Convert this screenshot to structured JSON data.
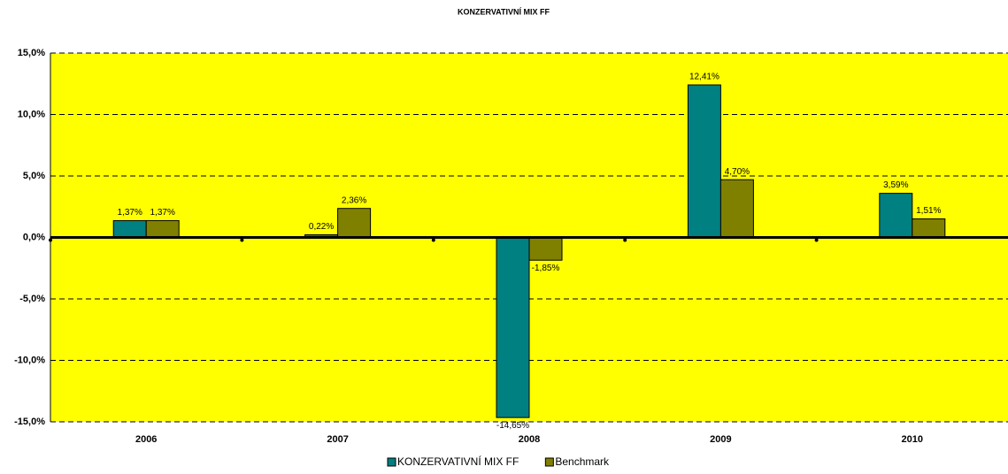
{
  "chart_data": {
    "type": "bar",
    "title": "KONZERVATIVNÍ MIX FF",
    "categories": [
      "2006",
      "2007",
      "2008",
      "2009",
      "2010"
    ],
    "series": [
      {
        "name": "KONZERVATIVNÍ MIX FF",
        "color": "#008080",
        "values": [
          1.37,
          0.22,
          -14.65,
          12.41,
          3.59
        ],
        "value_labels": [
          "1,37%",
          "0,22%",
          "-14,65%",
          "12,41%",
          "3,59%"
        ]
      },
      {
        "name": "Benchmark",
        "color": "#808000",
        "values": [
          1.37,
          2.36,
          -1.85,
          4.7,
          1.51
        ],
        "value_labels": [
          "1,37%",
          "2,36%",
          "-1,85%",
          "4,70%",
          "1,51%"
        ]
      }
    ],
    "ylim": [
      -15,
      15
    ],
    "yticks": [
      {
        "value": -15,
        "label": "-15,0%"
      },
      {
        "value": -10,
        "label": "-10,0%"
      },
      {
        "value": -5,
        "label": "-5,0%"
      },
      {
        "value": 0,
        "label": "0,0%"
      },
      {
        "value": 5,
        "label": "5,0%"
      },
      {
        "value": 10,
        "label": "10,0%"
      },
      {
        "value": 15,
        "label": "15,0%"
      }
    ],
    "grid": true,
    "plot_background": "#ffff00",
    "legend": "bottom"
  }
}
